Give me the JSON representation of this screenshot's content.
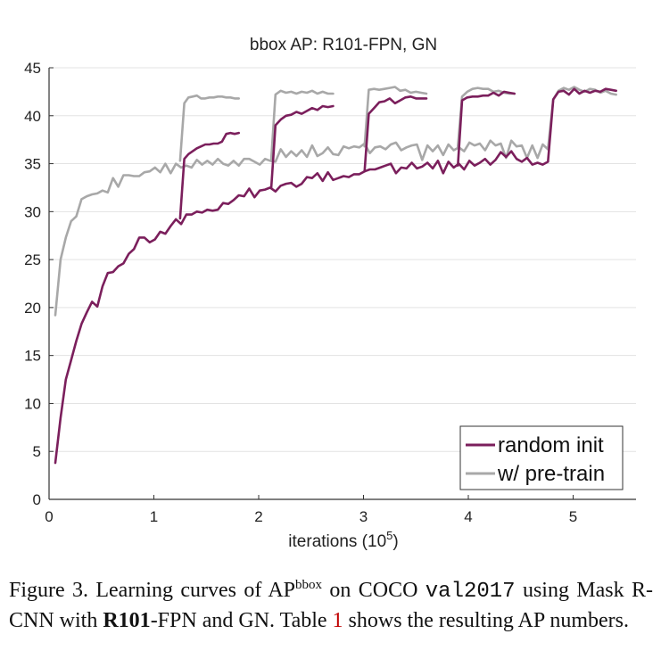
{
  "chart_data": {
    "type": "line",
    "title": "bbox AP: R101-FPN, GN",
    "xlabel": "iterations (10",
    "xlabel_exp": "5",
    "xlabel_close": ")",
    "ylabel": "",
    "xlim": [
      0,
      5.6
    ],
    "ylim": [
      0,
      45
    ],
    "xticks": [
      0,
      1,
      2,
      3,
      4,
      5
    ],
    "yticks": [
      0,
      5,
      10,
      15,
      20,
      25,
      30,
      35,
      40,
      45
    ],
    "grid": "horizontal",
    "legend_position": "bottom-right",
    "colors": {
      "random_init": "#7b1f5c",
      "pretrain": "#a8a8a8",
      "grid": "#e3e3e3",
      "axis": "#333333"
    },
    "main_series": [
      {
        "name": "random init",
        "color_key": "random_init",
        "x": [
          0.06,
          0.11,
          0.16,
          0.21,
          0.26,
          0.31,
          0.36,
          0.41,
          0.46,
          0.51,
          0.56,
          0.61,
          0.66,
          0.71,
          0.76,
          0.81,
          0.86,
          0.91,
          0.96,
          1.01,
          1.06,
          1.11,
          1.16,
          1.21,
          1.26,
          1.31,
          1.36,
          1.41,
          1.46,
          1.51,
          1.56,
          1.61,
          1.66,
          1.71,
          1.76,
          1.81,
          1.86,
          1.91,
          1.96,
          2.01,
          2.06,
          2.11,
          2.16,
          2.21,
          2.26,
          2.31,
          2.36,
          2.41,
          2.46,
          2.51,
          2.56,
          2.61,
          2.66,
          2.71,
          2.76,
          2.81,
          2.86,
          2.91,
          2.96,
          3.01,
          3.06,
          3.11,
          3.16,
          3.21,
          3.26,
          3.31,
          3.36,
          3.41,
          3.46,
          3.51,
          3.56,
          3.61,
          3.66,
          3.71,
          3.76,
          3.81,
          3.86,
          3.91,
          3.96,
          4.01,
          4.06,
          4.11,
          4.16,
          4.21,
          4.26,
          4.31,
          4.36,
          4.41,
          4.46,
          4.51,
          4.56,
          4.61,
          4.66,
          4.71,
          4.76,
          4.81,
          4.86,
          4.91,
          4.96,
          5.01,
          5.06,
          5.11,
          5.16,
          5.21,
          5.26,
          5.31,
          5.36,
          5.41
        ],
        "y": [
          3.8,
          8.5,
          12.5,
          14.5,
          16.5,
          18.3,
          19.5,
          20.6,
          20.1,
          22.2,
          23.6,
          23.7,
          24.3,
          24.6,
          25.6,
          26.1,
          27.3,
          27.3,
          26.8,
          27.1,
          27.9,
          27.7,
          28.5,
          29.2,
          28.7,
          29.7,
          29.7,
          30.0,
          29.9,
          30.2,
          30.1,
          30.2,
          30.9,
          30.8,
          31.2,
          31.7,
          31.6,
          32.4,
          31.5,
          32.2,
          32.3,
          32.5,
          32.1,
          32.7,
          32.9,
          33.0,
          32.6,
          32.9,
          33.6,
          33.5,
          34.0,
          33.2,
          34.1,
          33.3,
          33.5,
          33.7,
          33.6,
          33.9,
          33.9,
          34.2,
          34.4,
          34.4,
          34.6,
          34.8,
          35.0,
          34.0,
          34.6,
          34.5,
          35.1,
          34.5,
          34.7,
          35.1,
          34.5,
          35.3,
          34.0,
          35.2,
          34.6,
          35.0,
          34.4,
          35.3,
          34.8,
          35.1,
          35.5,
          34.9,
          35.4,
          36.2,
          35.7,
          36.3,
          35.5,
          35.2,
          35.6,
          34.9,
          35.1,
          34.9,
          35.2,
          41.7,
          42.5,
          42.6,
          42.2,
          42.8,
          42.3,
          42.6,
          42.4,
          42.6,
          42.5,
          42.8,
          42.7,
          42.6
        ]
      },
      {
        "name": "w/ pre-train",
        "color_key": "pretrain",
        "x": [
          0.06,
          0.11,
          0.16,
          0.21,
          0.26,
          0.31,
          0.36,
          0.41,
          0.46,
          0.51,
          0.56,
          0.61,
          0.66,
          0.71,
          0.76,
          0.81,
          0.86,
          0.91,
          0.96,
          1.01,
          1.06,
          1.11,
          1.16,
          1.21,
          1.26,
          1.31,
          1.36,
          1.41,
          1.46,
          1.51,
          1.56,
          1.61,
          1.66,
          1.71,
          1.76,
          1.81,
          1.86,
          1.91,
          1.96,
          2.01,
          2.06,
          2.11,
          2.16,
          2.21,
          2.26,
          2.31,
          2.36,
          2.41,
          2.46,
          2.51,
          2.56,
          2.61,
          2.66,
          2.71,
          2.76,
          2.81,
          2.86,
          2.91,
          2.96,
          3.01,
          3.06,
          3.11,
          3.16,
          3.21,
          3.26,
          3.31,
          3.36,
          3.41,
          3.46,
          3.51,
          3.56,
          3.61,
          3.66,
          3.71,
          3.76,
          3.81,
          3.86,
          3.91,
          3.96,
          4.01,
          4.06,
          4.11,
          4.16,
          4.21,
          4.26,
          4.31,
          4.36,
          4.41,
          4.46,
          4.51,
          4.56,
          4.61,
          4.66,
          4.71,
          4.76,
          4.81,
          4.86,
          4.91,
          4.96,
          5.01,
          5.06,
          5.11,
          5.16,
          5.21,
          5.26,
          5.31,
          5.36,
          5.41
        ],
        "y": [
          19.2,
          25.0,
          27.3,
          29.0,
          29.5,
          31.3,
          31.6,
          31.8,
          31.9,
          32.2,
          32.0,
          33.5,
          32.6,
          33.8,
          33.8,
          33.7,
          33.7,
          34.1,
          34.2,
          34.6,
          34.1,
          35.0,
          34.0,
          35.0,
          34.6,
          34.8,
          34.6,
          35.4,
          34.9,
          35.3,
          34.9,
          35.5,
          35.0,
          34.8,
          35.3,
          34.8,
          35.5,
          35.5,
          35.2,
          34.9,
          35.5,
          35.3,
          35.2,
          36.5,
          35.7,
          36.3,
          35.8,
          36.4,
          35.7,
          36.9,
          35.8,
          36.1,
          36.7,
          36.0,
          35.9,
          36.8,
          36.6,
          36.8,
          36.7,
          37.1,
          36.1,
          36.7,
          36.8,
          36.5,
          37.0,
          37.2,
          36.4,
          36.7,
          36.9,
          37.0,
          35.4,
          36.9,
          36.3,
          36.9,
          35.9,
          37.0,
          36.4,
          36.7,
          36.3,
          37.2,
          36.9,
          37.1,
          36.4,
          37.4,
          36.9,
          37.1,
          35.6,
          37.4,
          36.8,
          36.9,
          35.6,
          36.9,
          35.6,
          37.0,
          36.5,
          41.7,
          42.6,
          42.9,
          42.7,
          43.0,
          42.7,
          42.5,
          42.8,
          42.7,
          42.4,
          42.6,
          42.3,
          42.2
        ]
      }
    ],
    "branch_series": [
      {
        "name": "random init @1.25",
        "color_key": "random_init",
        "x": [
          1.25,
          1.29,
          1.33,
          1.37,
          1.41,
          1.45,
          1.49,
          1.53,
          1.57,
          1.61,
          1.65,
          1.69,
          1.73,
          1.77,
          1.81
        ],
        "y": [
          29.3,
          35.5,
          36.0,
          36.3,
          36.6,
          36.8,
          37.0,
          37.0,
          37.1,
          37.1,
          37.3,
          38.1,
          38.2,
          38.1,
          38.2
        ]
      },
      {
        "name": "w/ pre-train @1.25",
        "color_key": "pretrain",
        "x": [
          1.25,
          1.29,
          1.33,
          1.37,
          1.41,
          1.45,
          1.49,
          1.53,
          1.57,
          1.61,
          1.65,
          1.69,
          1.73,
          1.77,
          1.81
        ],
        "y": [
          35.3,
          41.3,
          41.9,
          42.0,
          42.1,
          41.8,
          41.8,
          41.9,
          41.9,
          42.0,
          42.0,
          41.9,
          41.9,
          41.8,
          41.8
        ]
      },
      {
        "name": "random init @2.12",
        "color_key": "random_init",
        "x": [
          2.12,
          2.16,
          2.21,
          2.26,
          2.31,
          2.36,
          2.41,
          2.46,
          2.51,
          2.56,
          2.61,
          2.66,
          2.71
        ],
        "y": [
          32.5,
          39.0,
          39.6,
          40.0,
          40.1,
          40.4,
          40.2,
          40.5,
          40.8,
          40.6,
          41.0,
          40.9,
          41.0
        ]
      },
      {
        "name": "w/ pre-train @2.12",
        "color_key": "pretrain",
        "x": [
          2.12,
          2.16,
          2.21,
          2.26,
          2.31,
          2.36,
          2.41,
          2.46,
          2.51,
          2.56,
          2.61,
          2.66,
          2.71
        ],
        "y": [
          35.5,
          42.2,
          42.6,
          42.4,
          42.5,
          42.3,
          42.5,
          42.4,
          42.6,
          42.3,
          42.5,
          42.3,
          42.3
        ]
      },
      {
        "name": "random init @3.01",
        "color_key": "random_init",
        "x": [
          3.01,
          3.05,
          3.1,
          3.15,
          3.2,
          3.25,
          3.3,
          3.35,
          3.4,
          3.45,
          3.5,
          3.55,
          3.6
        ],
        "y": [
          34.2,
          40.2,
          40.8,
          41.4,
          41.5,
          41.8,
          41.3,
          41.6,
          41.9,
          42.0,
          41.8,
          41.8,
          41.8
        ]
      },
      {
        "name": "w/ pre-train @3.01",
        "color_key": "pretrain",
        "x": [
          3.01,
          3.05,
          3.1,
          3.15,
          3.2,
          3.25,
          3.3,
          3.35,
          3.4,
          3.45,
          3.5,
          3.55,
          3.6
        ],
        "y": [
          36.8,
          42.7,
          42.8,
          42.7,
          42.8,
          42.9,
          43.0,
          42.6,
          42.7,
          42.4,
          42.5,
          42.4,
          42.3
        ]
      },
      {
        "name": "random init @3.9",
        "color_key": "random_init",
        "x": [
          3.9,
          3.94,
          3.99,
          4.04,
          4.09,
          4.14,
          4.19,
          4.24,
          4.29,
          4.34,
          4.39,
          4.44
        ],
        "y": [
          34.8,
          41.6,
          41.9,
          42.0,
          42.0,
          42.1,
          42.1,
          42.4,
          42.1,
          42.5,
          42.4,
          42.3
        ]
      },
      {
        "name": "w/ pre-train @3.9",
        "color_key": "pretrain",
        "x": [
          3.9,
          3.94,
          3.99,
          4.04,
          4.09,
          4.14,
          4.19,
          4.24,
          4.29,
          4.34,
          4.39,
          4.44
        ],
        "y": [
          36.8,
          42.0,
          42.5,
          42.8,
          42.9,
          42.8,
          42.8,
          42.5,
          42.6,
          42.4,
          42.3,
          42.3
        ]
      }
    ],
    "legend": [
      {
        "label": "random init",
        "color_key": "random_init"
      },
      {
        "label": "w/ pre-train",
        "color_key": "pretrain"
      }
    ]
  },
  "caption": {
    "prefix": "Figure 3. Learning curves of AP",
    "sup": "bbox",
    "mid1": " on COCO ",
    "dataset": "val2017",
    "mid2": " using Mask R-CNN with ",
    "model_bold": "R101",
    "mid3": "-FPN and GN. Table ",
    "ref": "1",
    "suffix": " shows the resulting AP numbers."
  }
}
